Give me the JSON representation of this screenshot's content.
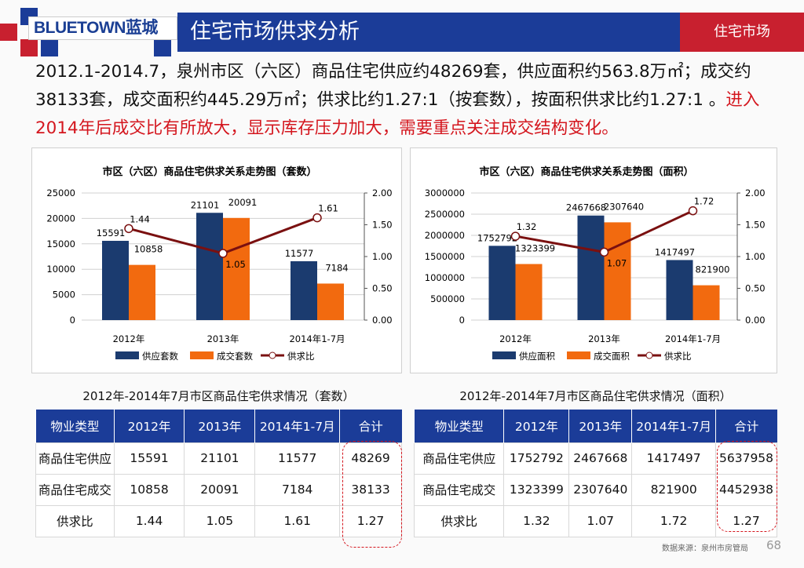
{
  "header": {
    "logo_text": "BLUETOWN蓝城",
    "title": "住宅市场供求分析",
    "section": "住宅市场"
  },
  "colors": {
    "blue": "#1b3c98",
    "red": "#c8202f",
    "supply": "#1b3b6f",
    "deal": "#f26a0f",
    "ratio": "#7a1010",
    "highlight": "#d4161e"
  },
  "summary": {
    "text_black": "2012.1-2014.7，泉州市区（六区）商品住宅供应约48269套，供应面积约563.8万㎡；成交约38133套，成交面积约445.29万㎡；供求比约1.27:1（按套数），按面积供求比约1.27:1 。",
    "text_red": "进入2014年后成交比有所放大，显示库存压力加大，需要重点关注成交结构变化。"
  },
  "chart_data": [
    {
      "type": "bar",
      "title": "市区（六区）商品住宅供求关系走势图（套数）",
      "categories": [
        "2012年",
        "2013年",
        "2014年1-7月"
      ],
      "series": [
        {
          "name": "供应套数",
          "type": "bar",
          "axis": "left",
          "values": [
            15591,
            21101,
            11577
          ]
        },
        {
          "name": "成交套数",
          "type": "bar",
          "axis": "left",
          "values": [
            10858,
            20091,
            7184
          ]
        },
        {
          "name": "供求比",
          "type": "line",
          "axis": "right",
          "values": [
            1.44,
            1.05,
            1.61
          ]
        }
      ],
      "ylim": [
        0,
        25000
      ],
      "yticks": [
        "25000",
        "20000",
        "15000",
        "10000",
        "5000",
        "0"
      ],
      "y2lim": [
        0,
        2
      ],
      "y2ticks": [
        "2.00",
        "1.50",
        "1.00",
        "0.50",
        "0.00"
      ],
      "grid": true,
      "legend": "bottom"
    },
    {
      "type": "bar",
      "title": "市区（六区）商品住宅供求关系走势图（面积）",
      "categories": [
        "2012年",
        "2013年",
        "2014年1-7月"
      ],
      "series": [
        {
          "name": "供应面积",
          "type": "bar",
          "axis": "left",
          "values": [
            1752792,
            2467668,
            1417497
          ]
        },
        {
          "name": "成交面积",
          "type": "bar",
          "axis": "left",
          "values": [
            1323399,
            2307640,
            821900
          ]
        },
        {
          "name": "供求比",
          "type": "line",
          "axis": "right",
          "values": [
            1.32,
            1.07,
            1.72
          ]
        }
      ],
      "ylim": [
        0,
        3000000
      ],
      "yticks": [
        "3000000",
        "2500000",
        "2000000",
        "1500000",
        "1000000",
        "500000",
        "0"
      ],
      "y2lim": [
        0,
        2
      ],
      "y2ticks": [
        "2.00",
        "1.50",
        "1.00",
        "0.50",
        "0.00"
      ],
      "grid": true,
      "legend": "bottom"
    }
  ],
  "tables": [
    {
      "title": "2012年-2014年7月市区商品住宅供求情况（套数）",
      "headers": [
        "物业类型",
        "2012年",
        "2013年",
        "2014年1-7月",
        "合计"
      ],
      "rows": [
        [
          "商品住宅供应",
          "15591",
          "21101",
          "11577",
          "48269"
        ],
        [
          "商品住宅成交",
          "10858",
          "20091",
          "7184",
          "38133"
        ],
        [
          "供求比",
          "1.44",
          "1.05",
          "1.61",
          "1.27"
        ]
      ]
    },
    {
      "title": "2012年-2014年7月市区商品住宅供求情况（面积）",
      "headers": [
        "物业类型",
        "2012年",
        "2013年",
        "2014年1-7月",
        "合计"
      ],
      "rows": [
        [
          "商品住宅供应",
          "1752792",
          "2467668",
          "1417497",
          "5637958"
        ],
        [
          "商品住宅成交",
          "1323399",
          "2307640",
          "821900",
          "4452938"
        ],
        [
          "供求比",
          "1.32",
          "1.07",
          "1.72",
          "1.27"
        ]
      ]
    }
  ],
  "footer": {
    "source": "数据来源：泉州市房管局",
    "page": "68"
  }
}
